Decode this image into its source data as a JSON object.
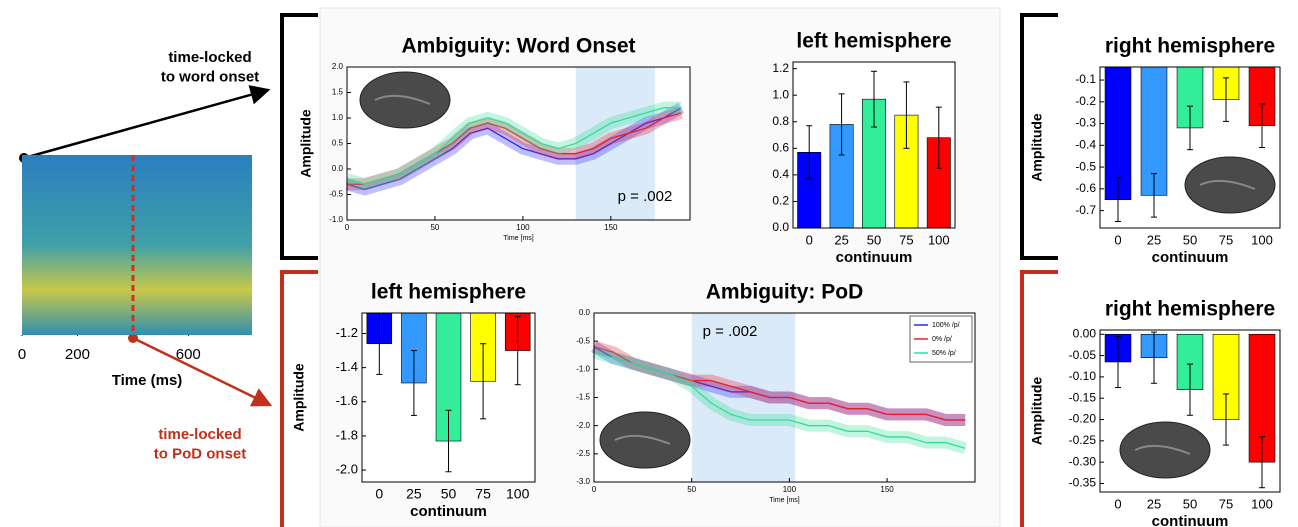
{
  "annotations": [
    "time-locked\nto word onset",
    "time-locked\nto PoD onset"
  ],
  "chart_data": [
    {
      "type": "image",
      "xlim": [
        0,
        830
      ],
      "xticks": [
        0,
        200,
        600
      ],
      "xlabel": "Time (ms)"
    },
    {
      "type": "line",
      "title": "Ambiguity: Word Onset",
      "xlabel": "Time [ms]",
      "ylabel": "Amplitude",
      "annotation": "p = .002",
      "highlight": [
        130,
        175
      ],
      "xlim": [
        0,
        195
      ],
      "xticks": [
        0,
        50,
        100,
        150
      ],
      "ylim": [
        -1,
        2
      ],
      "yticks": [
        {
          "value": -1,
          "label": "-1.0"
        },
        -0.5,
        {
          "value": 0,
          "label": "0.0"
        },
        0.5,
        {
          "value": 1,
          "label": "1.0"
        },
        1.5,
        {
          "value": 2,
          "label": "2.0"
        }
      ],
      "x": [
        0,
        10,
        20,
        30,
        40,
        50,
        60,
        70,
        80,
        90,
        100,
        110,
        120,
        130,
        140,
        150,
        160,
        170,
        180,
        190
      ],
      "series": [
        {
          "color": "#2a2aff",
          "values": [
            -0.3,
            -0.4,
            -0.3,
            -0.2,
            0.0,
            0.2,
            0.4,
            0.7,
            0.8,
            0.6,
            0.4,
            0.3,
            0.2,
            0.2,
            0.3,
            0.5,
            0.7,
            0.9,
            1.0,
            1.2
          ]
        },
        {
          "color": "#e8202a",
          "values": [
            -0.3,
            -0.3,
            -0.2,
            -0.1,
            0.1,
            0.3,
            0.5,
            0.8,
            0.9,
            0.8,
            0.6,
            0.4,
            0.3,
            0.3,
            0.4,
            0.6,
            0.7,
            0.8,
            1.0,
            1.1
          ]
        },
        {
          "color": "#33dd99",
          "values": [
            -0.2,
            -0.3,
            -0.2,
            -0.1,
            0.1,
            0.3,
            0.6,
            0.9,
            1.0,
            0.9,
            0.7,
            0.5,
            0.4,
            0.5,
            0.7,
            0.9,
            1.0,
            1.1,
            1.2,
            1.2
          ]
        }
      ]
    },
    {
      "type": "bar",
      "title": "left hemisphere",
      "xlabel": "continuum",
      "categories": [
        "0",
        "25",
        "50",
        "75",
        "100"
      ],
      "values": [
        0.57,
        0.78,
        0.97,
        0.85,
        0.68
      ],
      "errors": [
        0.2,
        0.23,
        0.21,
        0.25,
        0.23
      ],
      "colors": [
        "#0000ff",
        "#3399ff",
        "#33ee99",
        "#ffff00",
        "#ff0000"
      ],
      "ylim": [
        0,
        1.25
      ],
      "yticks": [
        {
          "value": 0,
          "label": "0.0"
        },
        0.2,
        0.4,
        0.6,
        0.8,
        {
          "value": 1,
          "label": "1.0"
        },
        1.2
      ]
    },
    {
      "type": "bar",
      "title": "right hemisphere",
      "xlabel": "continuum",
      "ylabel": "Amplitude",
      "categories": [
        "0",
        "25",
        "50",
        "75",
        "100"
      ],
      "values": [
        -0.65,
        -0.63,
        -0.32,
        -0.19,
        -0.31
      ],
      "errors": [
        0.1,
        0.1,
        0.1,
        0.1,
        0.1
      ],
      "colors": [
        "#0000ff",
        "#3399ff",
        "#33ee99",
        "#ffff00",
        "#ff0000"
      ],
      "ylim": [
        -0.78,
        -0.04
      ],
      "yticks": [
        -0.1,
        -0.2,
        -0.3,
        -0.4,
        -0.5,
        -0.6,
        -0.7
      ]
    },
    {
      "type": "bar",
      "title": "left hemisphere",
      "xlabel": "continuum",
      "ylabel": "Amplitude",
      "categories": [
        "0",
        "25",
        "50",
        "75",
        "100"
      ],
      "values": [
        -1.26,
        -1.49,
        -1.83,
        -1.48,
        -1.3
      ],
      "errors": [
        0.18,
        0.19,
        0.18,
        0.22,
        0.2
      ],
      "colors": [
        "#0000ff",
        "#3399ff",
        "#33ee99",
        "#ffff00",
        "#ff0000"
      ],
      "ylim": [
        -2.07,
        -1.08
      ],
      "yticks": [
        -1.2,
        -1.4,
        -1.6,
        -1.8,
        {
          "value": -2,
          "label": "-2.0"
        }
      ]
    },
    {
      "type": "line",
      "title": "Ambiguity: PoD",
      "xlabel": "Time [ms]",
      "annotation": "p = .002",
      "highlight": [
        50,
        103
      ],
      "legend": "upper right",
      "xlim": [
        0,
        195
      ],
      "xticks": [
        0,
        50,
        100,
        150
      ],
      "ylim": [
        -3,
        0
      ],
      "yticks": [
        {
          "value": 0,
          "label": "0.0"
        },
        -0.5,
        {
          "value": -1,
          "label": "-1.0"
        },
        -1.5,
        {
          "value": -2,
          "label": "-2.0"
        },
        -2.5,
        {
          "value": -3,
          "label": "-3.0"
        }
      ],
      "x": [
        0,
        10,
        20,
        30,
        40,
        50,
        60,
        70,
        80,
        90,
        100,
        110,
        120,
        130,
        140,
        150,
        160,
        170,
        180,
        190
      ],
      "series": [
        {
          "name": "100% /p/",
          "color": "#2a2aff",
          "values": [
            -0.6,
            -0.8,
            -0.9,
            -1.0,
            -1.1,
            -1.2,
            -1.3,
            -1.4,
            -1.4,
            -1.5,
            -1.5,
            -1.6,
            -1.6,
            -1.7,
            -1.7,
            -1.8,
            -1.8,
            -1.8,
            -1.9,
            -1.9
          ]
        },
        {
          "name": "0% /p/",
          "color": "#e8202a",
          "values": [
            -0.6,
            -0.7,
            -0.9,
            -1.0,
            -1.1,
            -1.2,
            -1.2,
            -1.3,
            -1.4,
            -1.5,
            -1.5,
            -1.6,
            -1.6,
            -1.7,
            -1.7,
            -1.8,
            -1.8,
            -1.8,
            -1.9,
            -1.9
          ]
        },
        {
          "name": "50% /p/",
          "color": "#33dd99",
          "values": [
            -0.7,
            -0.8,
            -0.9,
            -1.0,
            -1.1,
            -1.3,
            -1.6,
            -1.8,
            -1.9,
            -1.9,
            -1.9,
            -2.0,
            -2.0,
            -2.1,
            -2.1,
            -2.2,
            -2.2,
            -2.3,
            -2.3,
            -2.4
          ]
        }
      ]
    },
    {
      "type": "bar",
      "title": "right hemisphere",
      "xlabel": "continuum",
      "ylabel": "Amplitude",
      "categories": [
        "0",
        "25",
        "50",
        "75",
        "100"
      ],
      "values": [
        -0.065,
        -0.055,
        -0.13,
        -0.2,
        -0.3
      ],
      "errors": [
        0.06,
        0.06,
        0.06,
        0.06,
        0.06
      ],
      "colors": [
        "#0000ff",
        "#3399ff",
        "#33ee99",
        "#ffff00",
        "#ff0000"
      ],
      "ylim": [
        -0.37,
        0.01
      ],
      "yticks": [
        {
          "value": 0,
          "label": "0.00"
        },
        -0.05,
        {
          "value": -0.1,
          "label": "-0.10"
        },
        -0.15,
        {
          "value": -0.2,
          "label": "-0.20"
        },
        -0.25,
        {
          "value": -0.3,
          "label": "-0.30"
        },
        -0.35
      ]
    }
  ]
}
